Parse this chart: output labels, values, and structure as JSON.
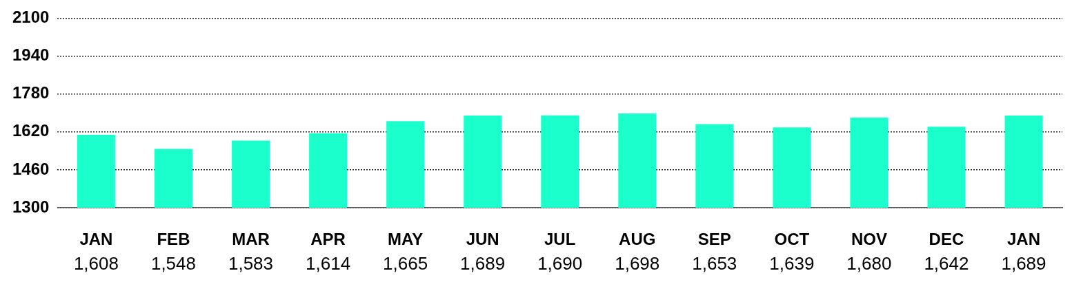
{
  "chart_data": {
    "type": "bar",
    "categories": [
      "JAN",
      "FEB",
      "MAR",
      "APR",
      "MAY",
      "JUN",
      "JUL",
      "AUG",
      "SEP",
      "OCT",
      "NOV",
      "DEC",
      "JAN"
    ],
    "values": [
      1608,
      1548,
      1583,
      1614,
      1665,
      1689,
      1690,
      1698,
      1653,
      1639,
      1680,
      1642,
      1689
    ],
    "value_labels": [
      "1,608",
      "1,548",
      "1,583",
      "1,614",
      "1,665",
      "1,689",
      "1,690",
      "1,698",
      "1,653",
      "1,639",
      "1,680",
      "1,642",
      "1,689"
    ],
    "color": "#1affcc",
    "ylim": [
      1300,
      2100
    ],
    "yticks": [
      1300,
      1460,
      1620,
      1780,
      1940,
      2100
    ],
    "grid": "y",
    "legend": false
  }
}
